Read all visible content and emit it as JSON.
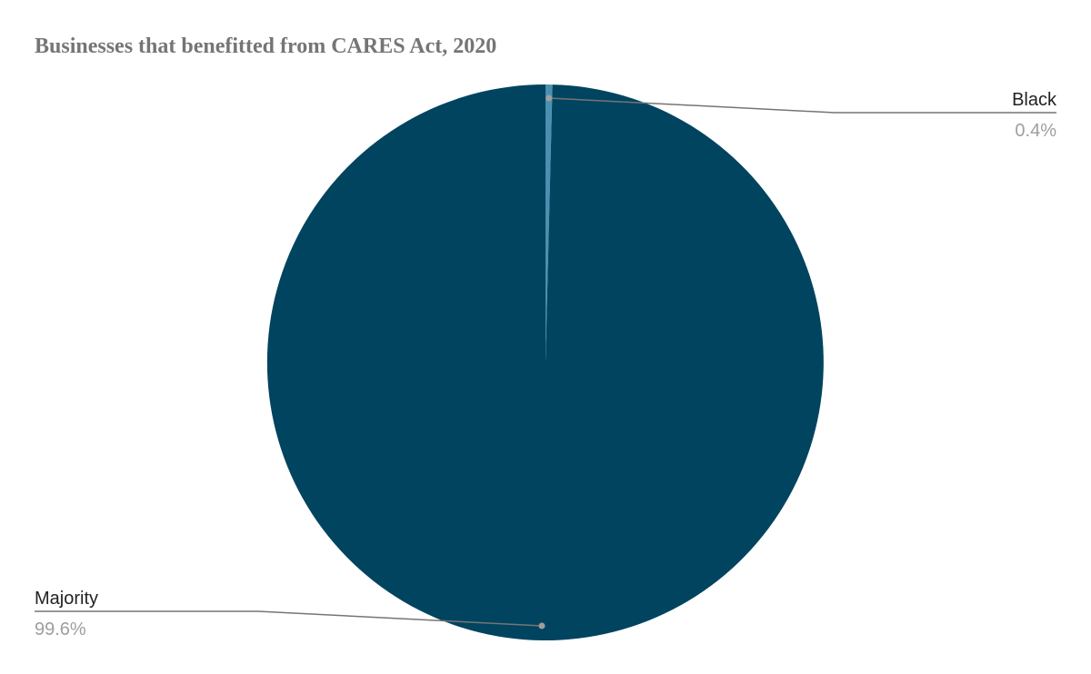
{
  "chart_data": {
    "type": "pie",
    "title": "Businesses that benefitted from CARES Act, 2020",
    "slices": [
      {
        "label": "Black",
        "value": 0.4,
        "value_label": "0.4%",
        "color": "#4a90b0"
      },
      {
        "label": "Majority",
        "value": 99.6,
        "value_label": "99.6%",
        "color": "#01445f"
      }
    ],
    "legend": "none",
    "start_angle": "top, clockwise",
    "labels": "outside with leader lines"
  },
  "colors": {
    "leader_line": "#757575",
    "label_text": "#222222",
    "percent_text": "#9e9e9e",
    "title_text": "#757575"
  }
}
